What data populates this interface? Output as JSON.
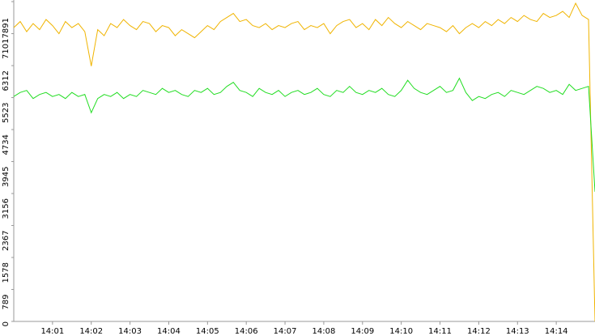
{
  "chart_data": {
    "type": "line",
    "x": [
      0,
      10,
      20,
      30,
      40,
      50,
      60,
      70,
      80,
      90,
      100,
      110,
      120,
      130,
      140,
      150,
      160,
      170,
      180,
      190,
      200,
      210,
      220,
      230,
      240,
      250,
      260,
      270,
      280,
      290,
      300,
      310,
      320,
      330,
      340,
      350,
      360,
      370,
      380,
      390,
      400,
      410,
      420,
      430,
      440,
      450,
      460,
      470,
      480,
      490,
      500,
      510,
      520,
      530,
      540,
      550,
      560,
      570,
      580,
      590,
      600,
      610,
      620,
      630,
      640,
      650,
      660,
      670,
      680,
      690,
      700,
      710,
      720,
      730,
      740,
      750,
      760,
      770,
      780,
      790,
      800,
      810,
      820,
      830,
      840,
      850,
      860,
      870,
      880,
      890,
      900
    ],
    "series": [
      {
        "color": "#f0b400",
        "values": [
          7250,
          7400,
          7150,
          7350,
          7200,
          7450,
          7300,
          7100,
          7400,
          7250,
          7350,
          7150,
          6300,
          7200,
          7050,
          7350,
          7250,
          7450,
          7300,
          7200,
          7400,
          7350,
          7150,
          7300,
          7250,
          7050,
          7200,
          7100,
          7000,
          7150,
          7300,
          7200,
          7400,
          7500,
          7600,
          7400,
          7450,
          7300,
          7250,
          7350,
          7200,
          7300,
          7250,
          7350,
          7400,
          7200,
          7300,
          7250,
          7350,
          7100,
          7300,
          7400,
          7450,
          7250,
          7350,
          7200,
          7450,
          7300,
          7500,
          7350,
          7250,
          7400,
          7300,
          7200,
          7350,
          7300,
          7250,
          7150,
          7300,
          7100,
          7250,
          7350,
          7250,
          7400,
          7300,
          7450,
          7350,
          7500,
          7400,
          7550,
          7450,
          7400,
          7600,
          7500,
          7550,
          7650,
          7500,
          7850,
          7550,
          7450,
          0
        ]
      },
      {
        "color": "#22dd22",
        "values": [
          5550,
          5650,
          5700,
          5500,
          5600,
          5650,
          5550,
          5600,
          5500,
          5650,
          5550,
          5600,
          5150,
          5500,
          5600,
          5550,
          5650,
          5500,
          5600,
          5550,
          5700,
          5650,
          5600,
          5750,
          5650,
          5700,
          5600,
          5550,
          5700,
          5650,
          5750,
          5600,
          5650,
          5800,
          5900,
          5700,
          5650,
          5550,
          5750,
          5650,
          5600,
          5700,
          5550,
          5650,
          5700,
          5600,
          5650,
          5750,
          5600,
          5550,
          5700,
          5650,
          5800,
          5650,
          5600,
          5700,
          5650,
          5750,
          5600,
          5550,
          5700,
          5950,
          5750,
          5650,
          5600,
          5700,
          5800,
          5650,
          5700,
          6000,
          5650,
          5450,
          5550,
          5500,
          5600,
          5650,
          5550,
          5700,
          5650,
          5600,
          5700,
          5800,
          5750,
          5650,
          5700,
          5600,
          5850,
          5700,
          5750,
          5800,
          3200
        ]
      }
    ],
    "xlim": [
      0,
      900
    ],
    "xticks": [
      {
        "value": 60,
        "label": "14:01"
      },
      {
        "value": 120,
        "label": "14:02"
      },
      {
        "value": 180,
        "label": "14:03"
      },
      {
        "value": 240,
        "label": "14:04"
      },
      {
        "value": 300,
        "label": "14:05"
      },
      {
        "value": 360,
        "label": "14:06"
      },
      {
        "value": 420,
        "label": "14:07"
      },
      {
        "value": 480,
        "label": "14:08"
      },
      {
        "value": 540,
        "label": "14:09"
      },
      {
        "value": 600,
        "label": "14:10"
      },
      {
        "value": 660,
        "label": "14:11"
      },
      {
        "value": 720,
        "label": "14:12"
      },
      {
        "value": 780,
        "label": "14:13"
      },
      {
        "value": 840,
        "label": "14:14"
      }
    ],
    "ylim": [
      0,
      7891
    ],
    "yticks": [
      0,
      789,
      1578,
      2367,
      3156,
      3945,
      4734,
      5523,
      6312,
      7101,
      7891
    ]
  }
}
